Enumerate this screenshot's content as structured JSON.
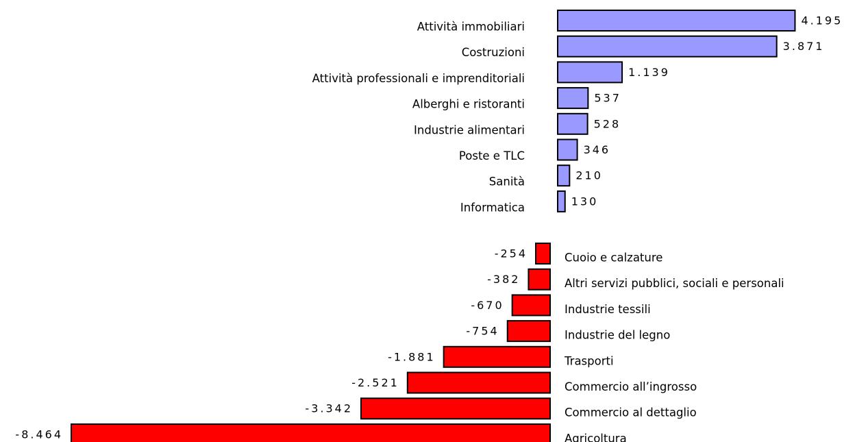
{
  "chart_data": {
    "type": "bar",
    "orientation": "horizontal",
    "categories": [
      "Attività immobiliari",
      "Costruzioni",
      "Attività professionali e imprenditoriali",
      "Alberghi e ristoranti",
      "Industrie alimentari",
      "Poste e TLC",
      "Sanità",
      "Informatica",
      "Cuoio e calzature",
      "Altri servizi pubblici, sociali e personali",
      "Industrie tessili",
      "Industrie del legno",
      "Trasporti",
      "Commercio all’ingrosso",
      "Commercio al dettaglio",
      "Agricoltura"
    ],
    "values": [
      4195,
      3871,
      1139,
      537,
      528,
      346,
      210,
      130,
      -254,
      -382,
      -670,
      -754,
      -1881,
      -2521,
      -3342,
      -8464
    ],
    "value_labels": [
      "4.195",
      "3.871",
      "1.139",
      "537",
      "528",
      "346",
      "210",
      "130",
      "-254",
      "-382",
      "-670",
      "-754",
      "-1.881",
      "-2.521",
      "-3.342",
      "-8.464"
    ],
    "color_positive": "#9999ff",
    "color_negative": "#ff0000"
  }
}
